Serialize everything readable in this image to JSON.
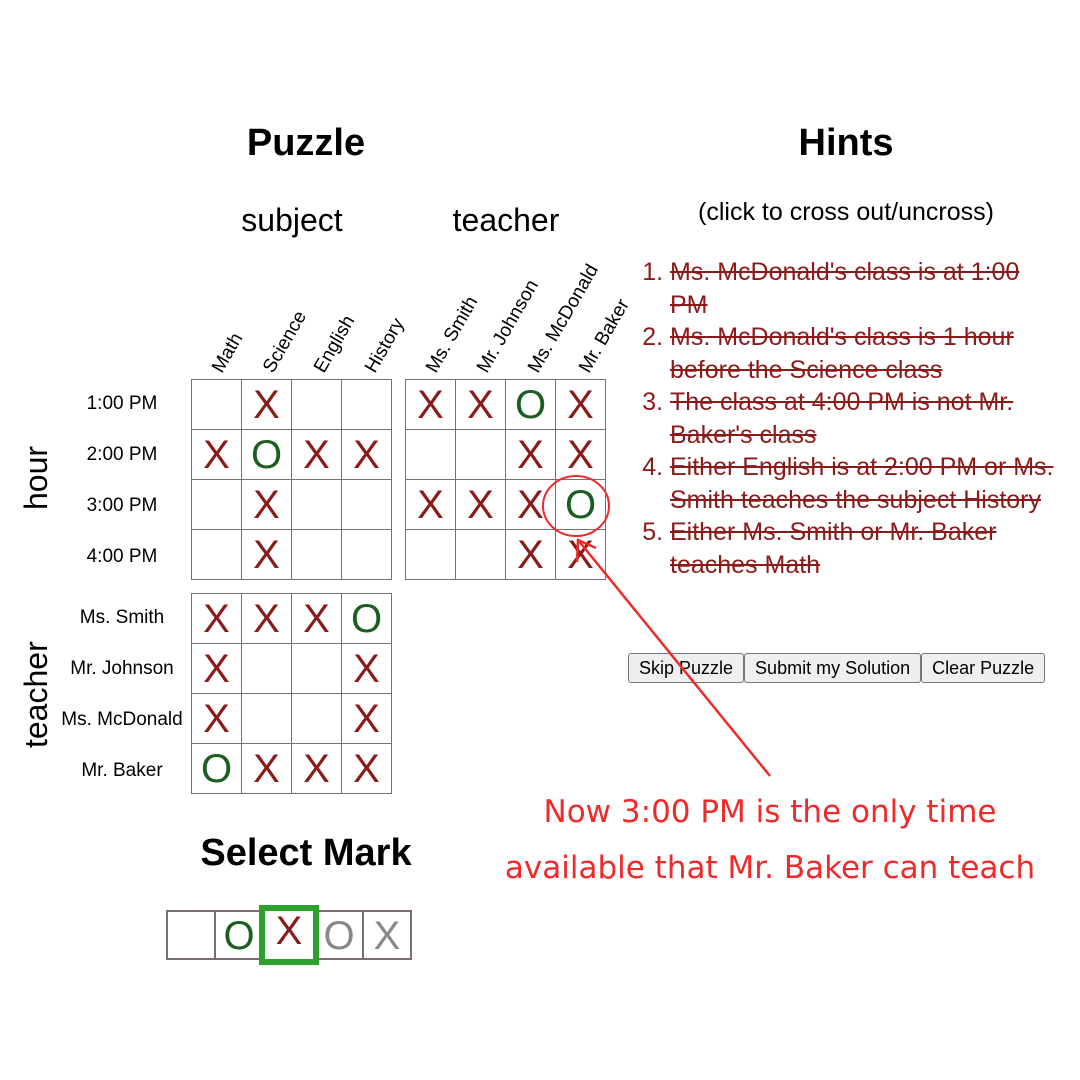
{
  "puzzle_title": "Puzzle",
  "hints_title": "Hints",
  "hints_subtitle": "(click to cross out/uncross)",
  "col_group_subject": "subject",
  "col_group_teacher": "teacher",
  "row_group_hour": "hour",
  "row_group_teacher": "teacher",
  "subjects": [
    "Math",
    "Science",
    "English",
    "History"
  ],
  "teachers": [
    "Ms. Smith",
    "Mr. Johnson",
    "Ms. McDonald",
    "Mr. Baker"
  ],
  "hours": [
    "1:00 PM",
    "2:00 PM",
    "3:00 PM",
    "4:00 PM"
  ],
  "grid_hour_subject": [
    [
      "",
      "X",
      "",
      ""
    ],
    [
      "X",
      "O",
      "X",
      "X"
    ],
    [
      "",
      "X",
      "",
      ""
    ],
    [
      "",
      "X",
      "",
      ""
    ]
  ],
  "grid_hour_teacher": [
    [
      "X",
      "X",
      "O",
      "X"
    ],
    [
      "",
      "",
      "X",
      "X"
    ],
    [
      "X",
      "X",
      "X",
      "O"
    ],
    [
      "",
      "",
      "X",
      "X"
    ]
  ],
  "grid_teacher_subject": [
    [
      "X",
      "X",
      "X",
      "O"
    ],
    [
      "X",
      "",
      "",
      "X"
    ],
    [
      "X",
      "",
      "",
      "X"
    ],
    [
      "O",
      "X",
      "X",
      "X"
    ]
  ],
  "hints": [
    "Ms. McDonald's class is at 1:00 PM",
    "Ms. McDonald's class is 1 hour before the Science class",
    "The class at 4:00 PM is not Mr. Baker's class",
    "Either English is at 2:00 PM or Ms. Smith teaches the subject History",
    "Either Ms. Smith or Mr. Baker teaches Math"
  ],
  "buttons": {
    "skip": "Skip Puzzle",
    "submit": "Submit my Solution",
    "clear": "Clear Puzzle"
  },
  "select_mark_title": "Select Mark",
  "select_marks": [
    "",
    "O",
    "X",
    "O",
    "X"
  ],
  "selected_mark_index": 2,
  "annotation": {
    "line1": "Now 3:00 PM is the only time",
    "line2": "available that Mr. Baker can teach"
  },
  "colors": {
    "x_mark": "#8b1a1a",
    "o_mark": "#1b5e20",
    "annotation": "#ee2a2a",
    "selected_border": "#2ca02c"
  }
}
